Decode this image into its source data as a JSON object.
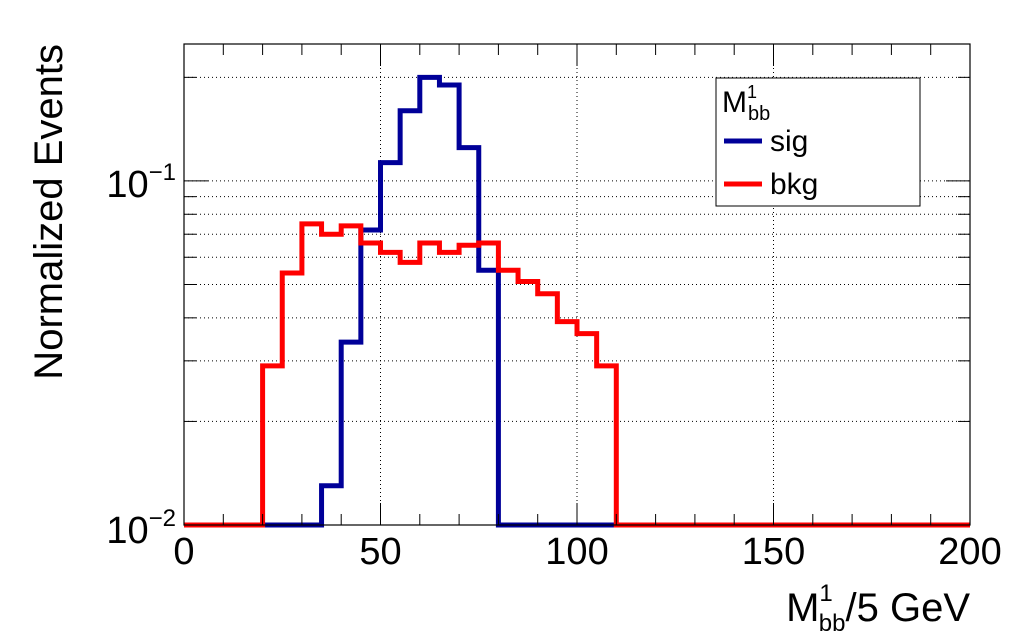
{
  "chart_data": {
    "type": "step histogram",
    "xlabel": {
      "base": "M",
      "sup": "1",
      "sub": "bb",
      "rest": "/5 GeV"
    },
    "ylabel": "Normalized Events",
    "xlim": [
      0,
      200
    ],
    "ylim": [
      0.01,
      0.25
    ],
    "yscale": "log",
    "grid": true,
    "bin_width": 5,
    "x_ticks": [
      "0",
      "50",
      "100",
      "150",
      "200"
    ],
    "y_ticks": [
      {
        "value": 0.1,
        "base": "10",
        "exp": "−1"
      },
      {
        "value": 0.01,
        "base": "10",
        "exp": "−2"
      }
    ],
    "legend": {
      "position": "top-right",
      "title": {
        "base": "M",
        "sup": "1",
        "sub": "bb"
      }
    },
    "series": [
      {
        "name": "sig",
        "color": "#000099",
        "values": [
          0.01,
          0.01,
          0.01,
          0.01,
          0.01,
          0.01,
          0.01,
          0.013,
          0.034,
          0.072,
          0.113,
          0.16,
          0.2,
          0.19,
          0.125,
          0.055,
          0.01,
          0.01,
          0.01,
          0.01,
          0.01,
          0.01,
          0.01,
          0.01,
          0.01,
          0.01,
          0.01,
          0.01,
          0.01,
          0.01,
          0.01,
          0.01,
          0.01,
          0.01,
          0.01,
          0.01,
          0.01,
          0.01,
          0.01,
          0.01
        ]
      },
      {
        "name": "bkg",
        "color": "#ff0000",
        "values": [
          0.01,
          0.01,
          0.01,
          0.01,
          0.029,
          0.054,
          0.075,
          0.07,
          0.074,
          0.066,
          0.062,
          0.058,
          0.066,
          0.062,
          0.065,
          0.066,
          0.055,
          0.051,
          0.047,
          0.039,
          0.036,
          0.029,
          0.01,
          0.01,
          0.01,
          0.01,
          0.01,
          0.01,
          0.01,
          0.01,
          0.01,
          0.01,
          0.01,
          0.01,
          0.01,
          0.01,
          0.01,
          0.01,
          0.01,
          0.01
        ]
      }
    ]
  }
}
